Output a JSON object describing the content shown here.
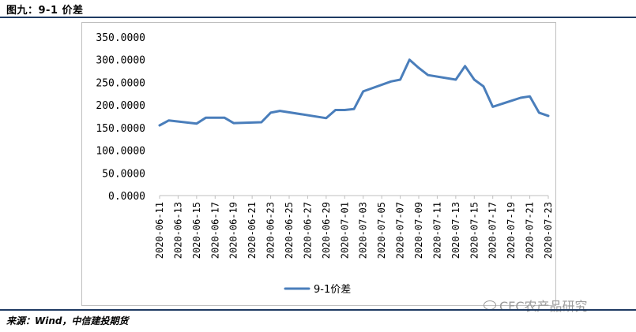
{
  "figure": {
    "title": "图九：9-1 价差",
    "source": "来源：Wind，中信建投期货",
    "watermark": "CFC农产品研究"
  },
  "colors": {
    "series": "#4a7ebb",
    "rule": "#1f3b63",
    "frame": "#bfbfbf"
  },
  "chart_data": {
    "type": "line",
    "title": "",
    "xlabel": "",
    "ylabel": "",
    "ylim": [
      0,
      350
    ],
    "yticks": [
      0,
      50,
      100,
      150,
      200,
      250,
      300,
      350
    ],
    "ytick_labels": [
      "0.0000",
      "50.0000",
      "100.0000",
      "150.0000",
      "200.0000",
      "250.0000",
      "300.0000",
      "350.0000"
    ],
    "grid": false,
    "legend_position": "bottom",
    "xtick_labels": [
      "2020-06-11",
      "2020-06-13",
      "2020-06-15",
      "2020-06-17",
      "2020-06-19",
      "2020-06-21",
      "2020-06-23",
      "2020-06-25",
      "2020-06-27",
      "2020-06-29",
      "2020-07-01",
      "2020-07-03",
      "2020-07-05",
      "2020-07-07",
      "2020-07-09",
      "2020-07-11",
      "2020-07-13",
      "2020-07-15",
      "2020-07-17",
      "2020-07-19",
      "2020-07-21",
      "2020-07-23"
    ],
    "x": [
      "2020-06-11",
      "2020-06-12",
      "2020-06-15",
      "2020-06-16",
      "2020-06-17",
      "2020-06-18",
      "2020-06-19",
      "2020-06-22",
      "2020-06-23",
      "2020-06-24",
      "2020-06-29",
      "2020-06-30",
      "2020-07-01",
      "2020-07-02",
      "2020-07-03",
      "2020-07-06",
      "2020-07-07",
      "2020-07-08",
      "2020-07-09",
      "2020-07-10",
      "2020-07-13",
      "2020-07-14",
      "2020-07-15",
      "2020-07-16",
      "2020-07-17",
      "2020-07-20",
      "2020-07-21",
      "2020-07-22",
      "2020-07-23"
    ],
    "series": [
      {
        "name": "9-1价差",
        "values": [
          155,
          166,
          159,
          172,
          172,
          172,
          160,
          162,
          183,
          187,
          171,
          189,
          189,
          191,
          230,
          252,
          256,
          300,
          282,
          266,
          256,
          286,
          256,
          241,
          196,
          216,
          219,
          183,
          176
        ]
      }
    ]
  }
}
